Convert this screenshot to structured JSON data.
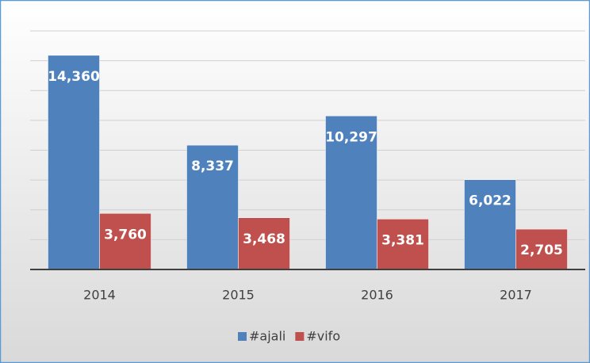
{
  "chart_data": {
    "type": "bar",
    "categories": [
      "2014",
      "2015",
      "2016",
      "2017"
    ],
    "series": [
      {
        "name": "#ajali",
        "color": "#4f81bd",
        "values": [
          14360,
          8337,
          10297,
          6022
        ],
        "value_labels": [
          "14,360",
          "8,337",
          "10,297",
          "6,022"
        ]
      },
      {
        "name": "#vifo",
        "color": "#c0504d",
        "values": [
          3760,
          3468,
          3381,
          2705
        ],
        "value_labels": [
          "3,760",
          "3,468",
          "3,381",
          "2,705"
        ]
      }
    ],
    "ylim": [
      0,
      16000
    ],
    "yticks": [
      0,
      2000,
      4000,
      6000,
      8000,
      10000,
      12000,
      14000,
      16000
    ],
    "grid": true,
    "legend": "bottom"
  }
}
